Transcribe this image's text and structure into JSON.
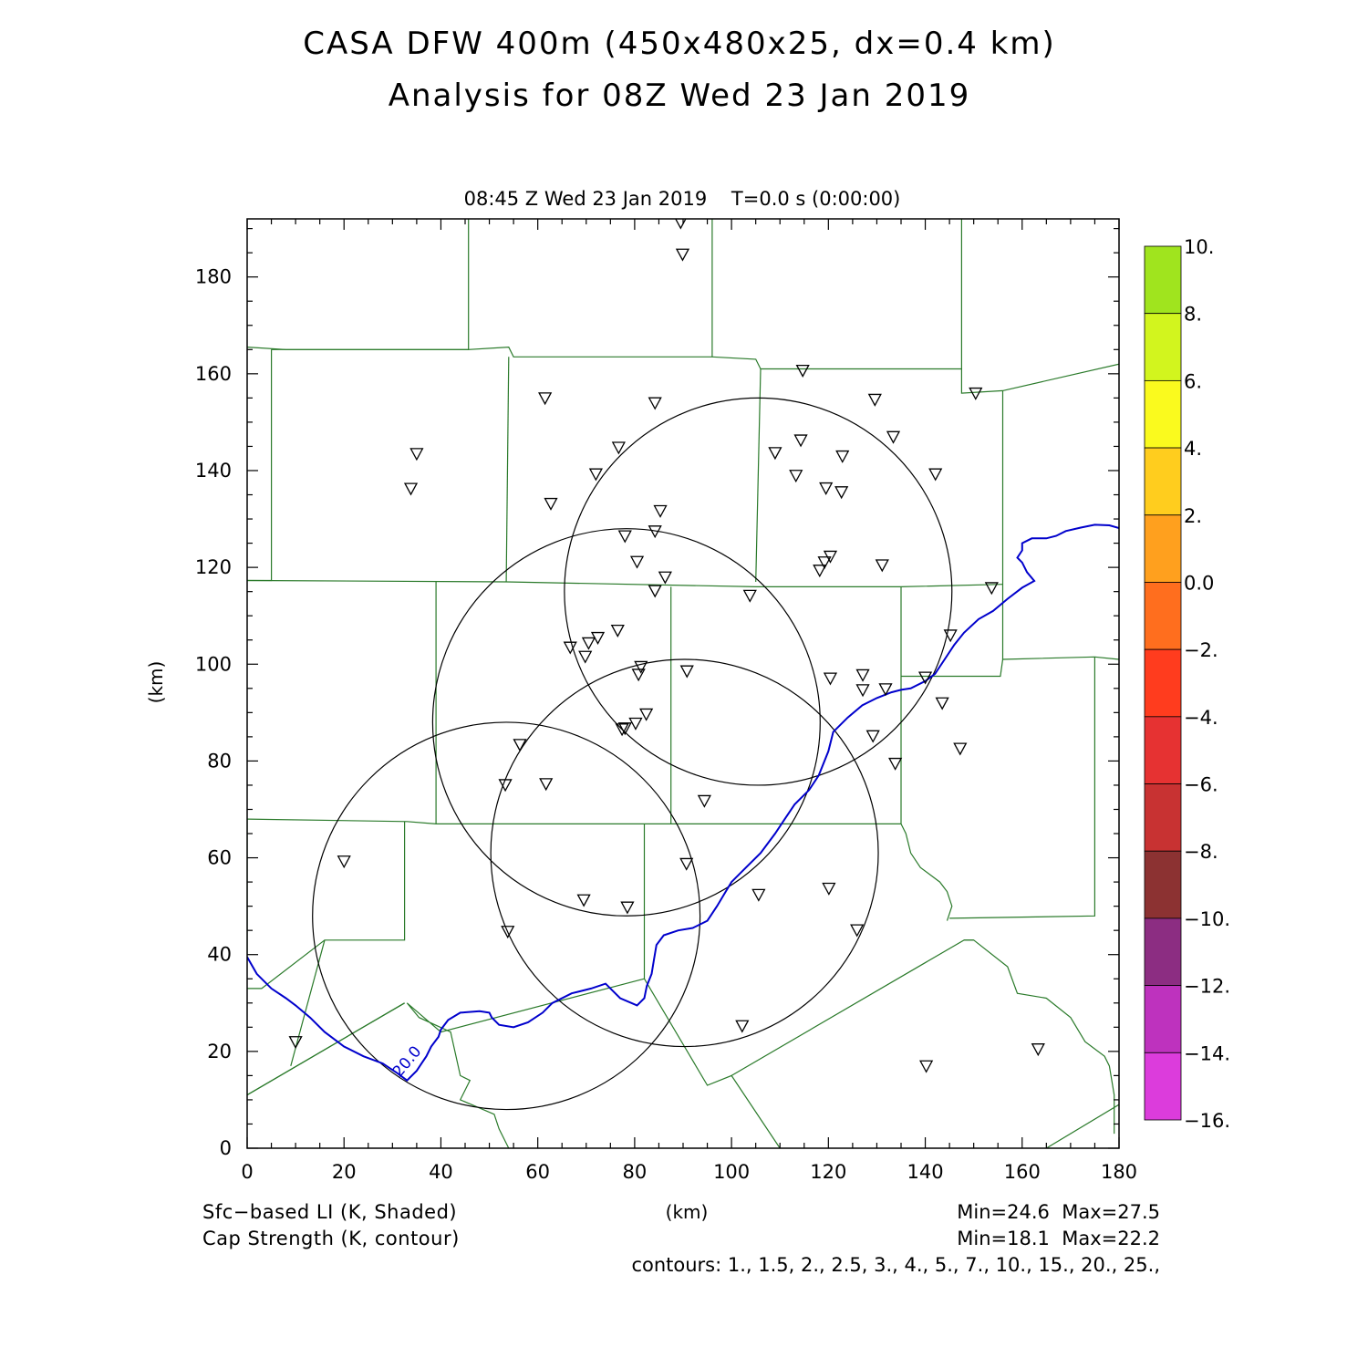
{
  "title": {
    "line1": "CASA DFW 400m (450x480x25, dx=0.4 km)",
    "line2": "Analysis for 08Z Wed 23 Jan 2019"
  },
  "plot": {
    "subtitle": "08:45 Z Wed 23 Jan 2019    T=0.0 s (0:00:00)",
    "xlabel": "(km)",
    "ylabel": "(km)",
    "x_ticks": [
      "0",
      "20",
      "40",
      "60",
      "80",
      "100",
      "120",
      "140",
      "160",
      "180"
    ],
    "y_ticks": [
      "0",
      "20",
      "40",
      "60",
      "80",
      "100",
      "120",
      "140",
      "160",
      "180"
    ],
    "xlim": [
      0,
      180
    ],
    "ylim": [
      0,
      192
    ]
  },
  "colorbar": {
    "labels": [
      "10.",
      "8.",
      "6.",
      "4.",
      "2.",
      "0.0",
      "−2.",
      "−4.",
      "−6.",
      "−8.",
      "−10.",
      "−12.",
      "−14.",
      "−16."
    ],
    "colors": [
      "#a0e41e",
      "#d2f51e",
      "#fafa1e",
      "#ffcd1e",
      "#ffa01e",
      "#ff6e1e",
      "#ff3c1e",
      "#e63232",
      "#c83232",
      "#8c3232",
      "#8c2d82",
      "#be32be",
      "#dc3cdc"
    ]
  },
  "footer": {
    "left1": "Sfc−based LI (K, Shaded)",
    "left2": "Cap Strength (K, contour)",
    "center": "(km)",
    "right1": "Min=24.6  Max=27.5",
    "right2": "Min=18.1  Max=22.2",
    "contours": "contours: 1., 1.5, 2., 2.5, 3., 4., 5., 7., 10., 15., 20., 25.,"
  },
  "contour_label": "20.0",
  "colors": {
    "county_lines": "#2a7a2a",
    "contour": "#0000cc",
    "radar_rings": "#000000"
  },
  "map_data": {
    "radar_rings": [
      {
        "cx": 105.5,
        "cy": 115,
        "r": 40
      },
      {
        "cx": 78.3,
        "cy": 88,
        "r": 40
      },
      {
        "cx": 90.3,
        "cy": 61,
        "r": 40
      },
      {
        "cx": 53.5,
        "cy": 48,
        "r": 40
      }
    ],
    "stations": [
      [
        89.5,
        191.3
      ],
      [
        89.9,
        184.7
      ],
      [
        114.7,
        160.7
      ],
      [
        61.5,
        155
      ],
      [
        84.2,
        154
      ],
      [
        129.6,
        154.7
      ],
      [
        150.4,
        156
      ],
      [
        35,
        143.5
      ],
      [
        33.8,
        136.3
      ],
      [
        76.7,
        144.8
      ],
      [
        72,
        139.3
      ],
      [
        109,
        143.7
      ],
      [
        114.3,
        146.3
      ],
      [
        122.9,
        143
      ],
      [
        133.4,
        147
      ],
      [
        113.3,
        139
      ],
      [
        142.1,
        139.3
      ],
      [
        62.7,
        133.2
      ],
      [
        85.3,
        131.7
      ],
      [
        119.5,
        136.4
      ],
      [
        122.7,
        135.6
      ],
      [
        78,
        126.5
      ],
      [
        84.2,
        127.5
      ],
      [
        80.5,
        121.2
      ],
      [
        120.4,
        122.3
      ],
      [
        119.2,
        121.1
      ],
      [
        118.2,
        119.4
      ],
      [
        131.1,
        120.5
      ],
      [
        86.3,
        118
      ],
      [
        84.2,
        115.2
      ],
      [
        103.8,
        114.2
      ],
      [
        153.7,
        115.8
      ],
      [
        76.5,
        107
      ],
      [
        72.4,
        105.5
      ],
      [
        70.5,
        104.4
      ],
      [
        66.7,
        103.5
      ],
      [
        69.8,
        101.6
      ],
      [
        145.2,
        106
      ],
      [
        81.3,
        99.5
      ],
      [
        90.8,
        98.6
      ],
      [
        80.8,
        97.9
      ],
      [
        120.4,
        97.1
      ],
      [
        127.1,
        97.8
      ],
      [
        140,
        97.3
      ],
      [
        127.1,
        94.7
      ],
      [
        131.8,
        94.9
      ],
      [
        143.5,
        92
      ],
      [
        82.4,
        89.7
      ],
      [
        80.2,
        87.8
      ],
      [
        77.4,
        86.6
      ],
      [
        78,
        86.8
      ],
      [
        129.2,
        85.2
      ],
      [
        56.3,
        83.4
      ],
      [
        147.2,
        82.6
      ],
      [
        133.8,
        79.5
      ],
      [
        53.3,
        75.1
      ],
      [
        61.7,
        75.3
      ],
      [
        94.4,
        71.8
      ],
      [
        20,
        59.3
      ],
      [
        90.7,
        58.8
      ],
      [
        120.1,
        53.7
      ],
      [
        69.5,
        51.3
      ],
      [
        78.5,
        49.8
      ],
      [
        105.6,
        52.4
      ],
      [
        53.8,
        44.8
      ],
      [
        125.9,
        45.1
      ],
      [
        102.2,
        25.3
      ],
      [
        10,
        22
      ],
      [
        163.3,
        20.5
      ],
      [
        140.2,
        17
      ]
    ],
    "contour_line": [
      [
        0,
        39.5
      ],
      [
        2,
        36
      ],
      [
        5,
        33
      ],
      [
        8,
        31
      ],
      [
        10,
        29.5
      ],
      [
        13,
        27
      ],
      [
        16,
        24
      ],
      [
        20,
        21
      ],
      [
        24,
        19
      ],
      [
        28,
        17.5
      ],
      [
        31,
        15.5
      ],
      [
        33,
        14
      ],
      [
        35,
        16
      ],
      [
        36,
        17.5
      ],
      [
        37,
        19
      ],
      [
        38,
        21
      ],
      [
        39.5,
        23
      ],
      [
        40,
        24.5
      ],
      [
        41.5,
        26.5
      ],
      [
        44,
        28
      ],
      [
        48,
        28.3
      ],
      [
        50,
        28
      ],
      [
        50.5,
        27
      ],
      [
        52,
        25.5
      ],
      [
        55,
        25
      ],
      [
        58,
        26
      ],
      [
        61,
        28
      ],
      [
        63,
        30
      ],
      [
        67,
        32
      ],
      [
        71,
        33
      ],
      [
        74,
        34
      ],
      [
        77,
        31
      ],
      [
        80.5,
        29.5
      ],
      [
        82,
        31
      ],
      [
        82.5,
        33.5
      ],
      [
        83.5,
        36
      ],
      [
        84,
        39
      ],
      [
        84.5,
        42
      ],
      [
        86,
        44
      ],
      [
        89,
        45
      ],
      [
        92,
        45.5
      ],
      [
        95,
        47
      ],
      [
        97,
        50
      ],
      [
        98.5,
        52.5
      ],
      [
        100,
        55
      ],
      [
        103,
        58
      ],
      [
        106,
        61
      ],
      [
        109,
        65
      ],
      [
        111,
        68
      ],
      [
        113,
        71
      ],
      [
        116,
        74
      ],
      [
        118,
        77
      ],
      [
        120,
        82
      ],
      [
        121,
        86
      ],
      [
        124,
        89
      ],
      [
        127,
        91.5
      ],
      [
        130,
        93
      ],
      [
        133,
        94.2
      ],
      [
        135,
        94.7
      ],
      [
        137,
        95
      ],
      [
        140,
        96.5
      ],
      [
        142,
        98
      ],
      [
        144,
        101
      ],
      [
        146,
        104
      ],
      [
        148,
        106.5
      ],
      [
        151,
        109.3
      ],
      [
        154,
        111
      ],
      [
        157,
        113.5
      ],
      [
        160,
        115.8
      ],
      [
        162.5,
        117.2
      ],
      [
        161,
        119
      ],
      [
        160,
        121
      ],
      [
        159,
        122
      ],
      [
        160,
        123.5
      ],
      [
        160,
        125
      ],
      [
        162,
        126
      ],
      [
        165,
        126
      ],
      [
        167,
        126.5
      ],
      [
        169,
        127.5
      ],
      [
        172,
        128.2
      ],
      [
        175,
        128.8
      ],
      [
        178,
        128.7
      ],
      [
        180,
        128.1
      ]
    ],
    "county_lines": [
      [
        [
          0,
          165.5
        ],
        [
          8,
          165
        ],
        [
          45.7,
          165
        ],
        [
          45.7,
          192
        ]
      ],
      [
        [
          5,
          165
        ],
        [
          5,
          117.3
        ],
        [
          0,
          117.3
        ]
      ],
      [
        [
          5,
          165
        ],
        [
          45.7,
          165
        ],
        [
          54,
          165.5
        ],
        [
          55,
          163.5
        ],
        [
          96,
          163.5
        ],
        [
          96,
          192
        ]
      ],
      [
        [
          54,
          163.5
        ],
        [
          53.5,
          117
        ]
      ],
      [
        [
          96,
          163.5
        ],
        [
          105,
          163
        ],
        [
          106,
          161
        ],
        [
          147.5,
          161
        ],
        [
          147.5,
          192
        ]
      ],
      [
        [
          106,
          161
        ],
        [
          105,
          117
        ]
      ],
      [
        [
          147.5,
          161
        ],
        [
          147.5,
          156
        ],
        [
          156,
          156.5
        ],
        [
          180,
          162
        ]
      ],
      [
        [
          156,
          156.5
        ],
        [
          156,
          101
        ]
      ],
      [
        [
          0,
          117.3
        ],
        [
          53.5,
          117
        ],
        [
          105,
          116
        ],
        [
          135,
          116
        ],
        [
          156,
          116.5
        ]
      ],
      [
        [
          39,
          117
        ],
        [
          39,
          67
        ]
      ],
      [
        [
          87.5,
          116
        ],
        [
          87.5,
          67
        ]
      ],
      [
        [
          135,
          116
        ],
        [
          135,
          67
        ],
        [
          136,
          65
        ],
        [
          137,
          61
        ],
        [
          139,
          58
        ],
        [
          143,
          55
        ],
        [
          144.5,
          53
        ],
        [
          145.5,
          50
        ],
        [
          144.5,
          47
        ]
      ],
      [
        [
          135,
          97.5
        ],
        [
          155.5,
          97.5
        ],
        [
          156,
          101
        ],
        [
          175,
          101.5
        ],
        [
          180,
          101
        ]
      ],
      [
        [
          175,
          101.5
        ],
        [
          175,
          48
        ],
        [
          145,
          47.5
        ]
      ],
      [
        [
          0,
          68
        ],
        [
          33,
          67.5
        ],
        [
          39,
          67
        ],
        [
          87.5,
          67
        ],
        [
          135,
          67
        ]
      ],
      [
        [
          0,
          68
        ],
        [
          0,
          40
        ]
      ],
      [
        [
          32.5,
          67.5
        ],
        [
          32.5,
          43
        ],
        [
          16,
          43
        ],
        [
          3,
          33
        ],
        [
          0,
          33
        ]
      ],
      [
        [
          32.5,
          30
        ],
        [
          0,
          11
        ]
      ],
      [
        [
          16,
          43
        ],
        [
          9,
          17
        ]
      ],
      [
        [
          32.5,
          30
        ],
        [
          0,
          11
        ]
      ],
      [
        [
          82,
          67
        ],
        [
          82,
          35
        ],
        [
          40,
          24
        ],
        [
          33,
          30
        ],
        [
          35.5,
          27
        ],
        [
          42,
          24
        ],
        [
          44,
          15
        ],
        [
          46,
          14
        ],
        [
          44,
          10
        ],
        [
          51,
          7
        ],
        [
          52,
          4
        ],
        [
          54,
          0
        ]
      ],
      [
        [
          82,
          35
        ],
        [
          95,
          13
        ],
        [
          100,
          15
        ],
        [
          110,
          0
        ]
      ],
      [
        [
          100,
          15
        ],
        [
          148,
          43
        ],
        [
          150,
          43
        ],
        [
          157,
          37.5
        ],
        [
          159,
          32
        ],
        [
          165,
          31
        ],
        [
          170,
          27
        ],
        [
          173,
          22
        ],
        [
          177,
          19
        ],
        [
          178,
          17
        ],
        [
          179,
          11
        ],
        [
          179,
          3
        ]
      ],
      [
        [
          148,
          43
        ],
        [
          150,
          43
        ]
      ],
      [
        [
          165,
          0
        ],
        [
          180,
          9
        ]
      ]
    ]
  }
}
